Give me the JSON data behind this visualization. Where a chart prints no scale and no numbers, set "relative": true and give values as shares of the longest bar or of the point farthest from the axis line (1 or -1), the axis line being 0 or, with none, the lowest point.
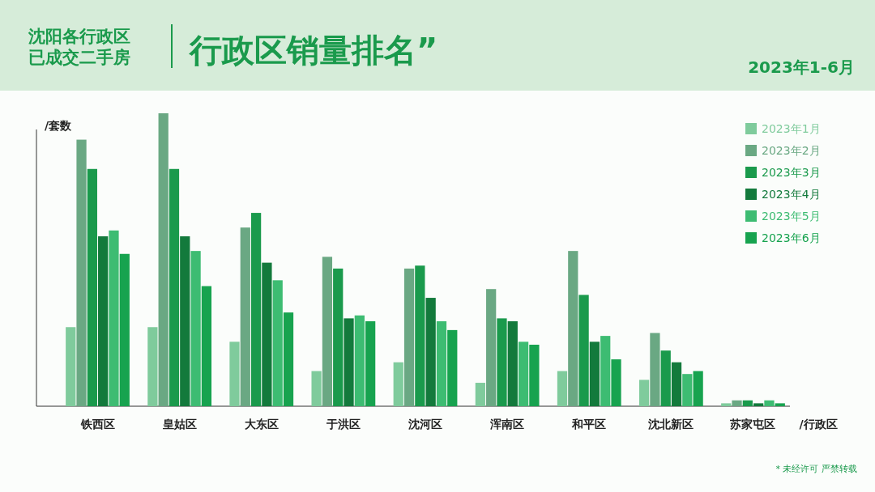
{
  "chart_data": {
    "type": "bar",
    "title": "行政区销量排名”",
    "subtitle": "沈阳各行政区已成交二手房",
    "ylabel": "/套数",
    "xlabel": "/行政区",
    "relative": true,
    "legend": "top right",
    "annotations": [
      "2023年1-6月",
      "* 未经许可 严禁转载"
    ],
    "categories": [
      "铁西区",
      "皇姑区",
      "大东区",
      "于洪区",
      "沈河区",
      "浑南区",
      "和平区",
      "沈北新区",
      "苏家屯区"
    ],
    "series": [
      {
        "name": "2023年1月",
        "color": "#7fcb9c",
        "values": [
          0.27,
          0.27,
          0.22,
          0.12,
          0.15,
          0.08,
          0.12,
          0.09,
          0.01
        ]
      },
      {
        "name": "2023年2月",
        "color": "#6aa883",
        "values": [
          0.91,
          1,
          0.61,
          0.51,
          0.47,
          0.4,
          0.53,
          0.25,
          0.02
        ]
      },
      {
        "name": "2023年3月",
        "color": "#1a9a4c",
        "values": [
          0.81,
          0.81,
          0.66,
          0.47,
          0.48,
          0.3,
          0.38,
          0.19,
          0.02
        ]
      },
      {
        "name": "2023年4月",
        "color": "#137a3c",
        "values": [
          0.58,
          0.58,
          0.49,
          0.3,
          0.37,
          0.29,
          0.22,
          0.15,
          0.01
        ]
      },
      {
        "name": "2023年5月",
        "color": "#3dbc72",
        "values": [
          0.6,
          0.53,
          0.43,
          0.31,
          0.29,
          0.22,
          0.24,
          0.11,
          0.02
        ]
      },
      {
        "name": "2023年6月",
        "color": "#17a34f",
        "values": [
          0.52,
          0.41,
          0.32,
          0.29,
          0.26,
          0.21,
          0.16,
          0.12,
          0.01
        ]
      }
    ]
  }
}
